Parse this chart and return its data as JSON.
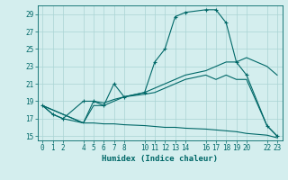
{
  "xlabel": "Humidex (Indice chaleur)",
  "background_color": "#d4eeee",
  "grid_color": "#aad4d4",
  "line_color": "#006868",
  "xlim": [
    -0.5,
    23.5
  ],
  "ylim": [
    14.5,
    30.0
  ],
  "xticks": [
    0,
    1,
    2,
    4,
    5,
    6,
    7,
    8,
    10,
    11,
    12,
    13,
    14,
    16,
    17,
    18,
    19,
    20,
    22,
    23
  ],
  "yticks": [
    15,
    17,
    19,
    21,
    23,
    25,
    27,
    29
  ],
  "curve1_x": [
    0,
    1,
    2,
    4,
    5,
    6,
    7,
    8,
    10,
    11,
    12,
    13,
    14,
    16,
    17,
    18,
    19,
    20,
    22,
    23
  ],
  "curve1_y": [
    18.5,
    17.5,
    17.0,
    19.0,
    19.0,
    18.5,
    21.0,
    19.5,
    20.0,
    23.5,
    25.0,
    28.7,
    29.2,
    29.5,
    29.5,
    28.0,
    23.5,
    22.0,
    16.2,
    15.0
  ],
  "curve2_x": [
    0,
    2,
    4,
    5,
    6,
    7,
    8,
    10,
    11,
    12,
    13,
    14,
    16,
    17,
    18,
    19,
    20,
    22,
    23
  ],
  "curve2_y": [
    18.5,
    17.5,
    16.5,
    19.0,
    18.8,
    19.2,
    19.5,
    20.0,
    20.5,
    21.0,
    21.5,
    22.0,
    22.5,
    23.0,
    23.5,
    23.5,
    24.0,
    23.0,
    22.0
  ],
  "curve3_x": [
    0,
    2,
    4,
    5,
    6,
    7,
    8,
    10,
    11,
    12,
    13,
    14,
    16,
    17,
    18,
    19,
    20,
    22,
    23
  ],
  "curve3_y": [
    18.5,
    17.5,
    16.5,
    18.5,
    18.5,
    19.0,
    19.5,
    19.8,
    20.0,
    20.5,
    21.0,
    21.5,
    22.0,
    21.5,
    22.0,
    21.5,
    21.5,
    16.2,
    15.0
  ],
  "curve4_x": [
    0,
    1,
    2,
    4,
    5,
    6,
    7,
    8,
    10,
    11,
    12,
    13,
    14,
    16,
    17,
    18,
    19,
    20,
    22,
    23
  ],
  "curve4_y": [
    18.5,
    17.5,
    17.0,
    16.5,
    16.5,
    16.4,
    16.4,
    16.3,
    16.2,
    16.1,
    16.0,
    16.0,
    15.9,
    15.8,
    15.7,
    15.6,
    15.5,
    15.3,
    15.1,
    14.8
  ]
}
